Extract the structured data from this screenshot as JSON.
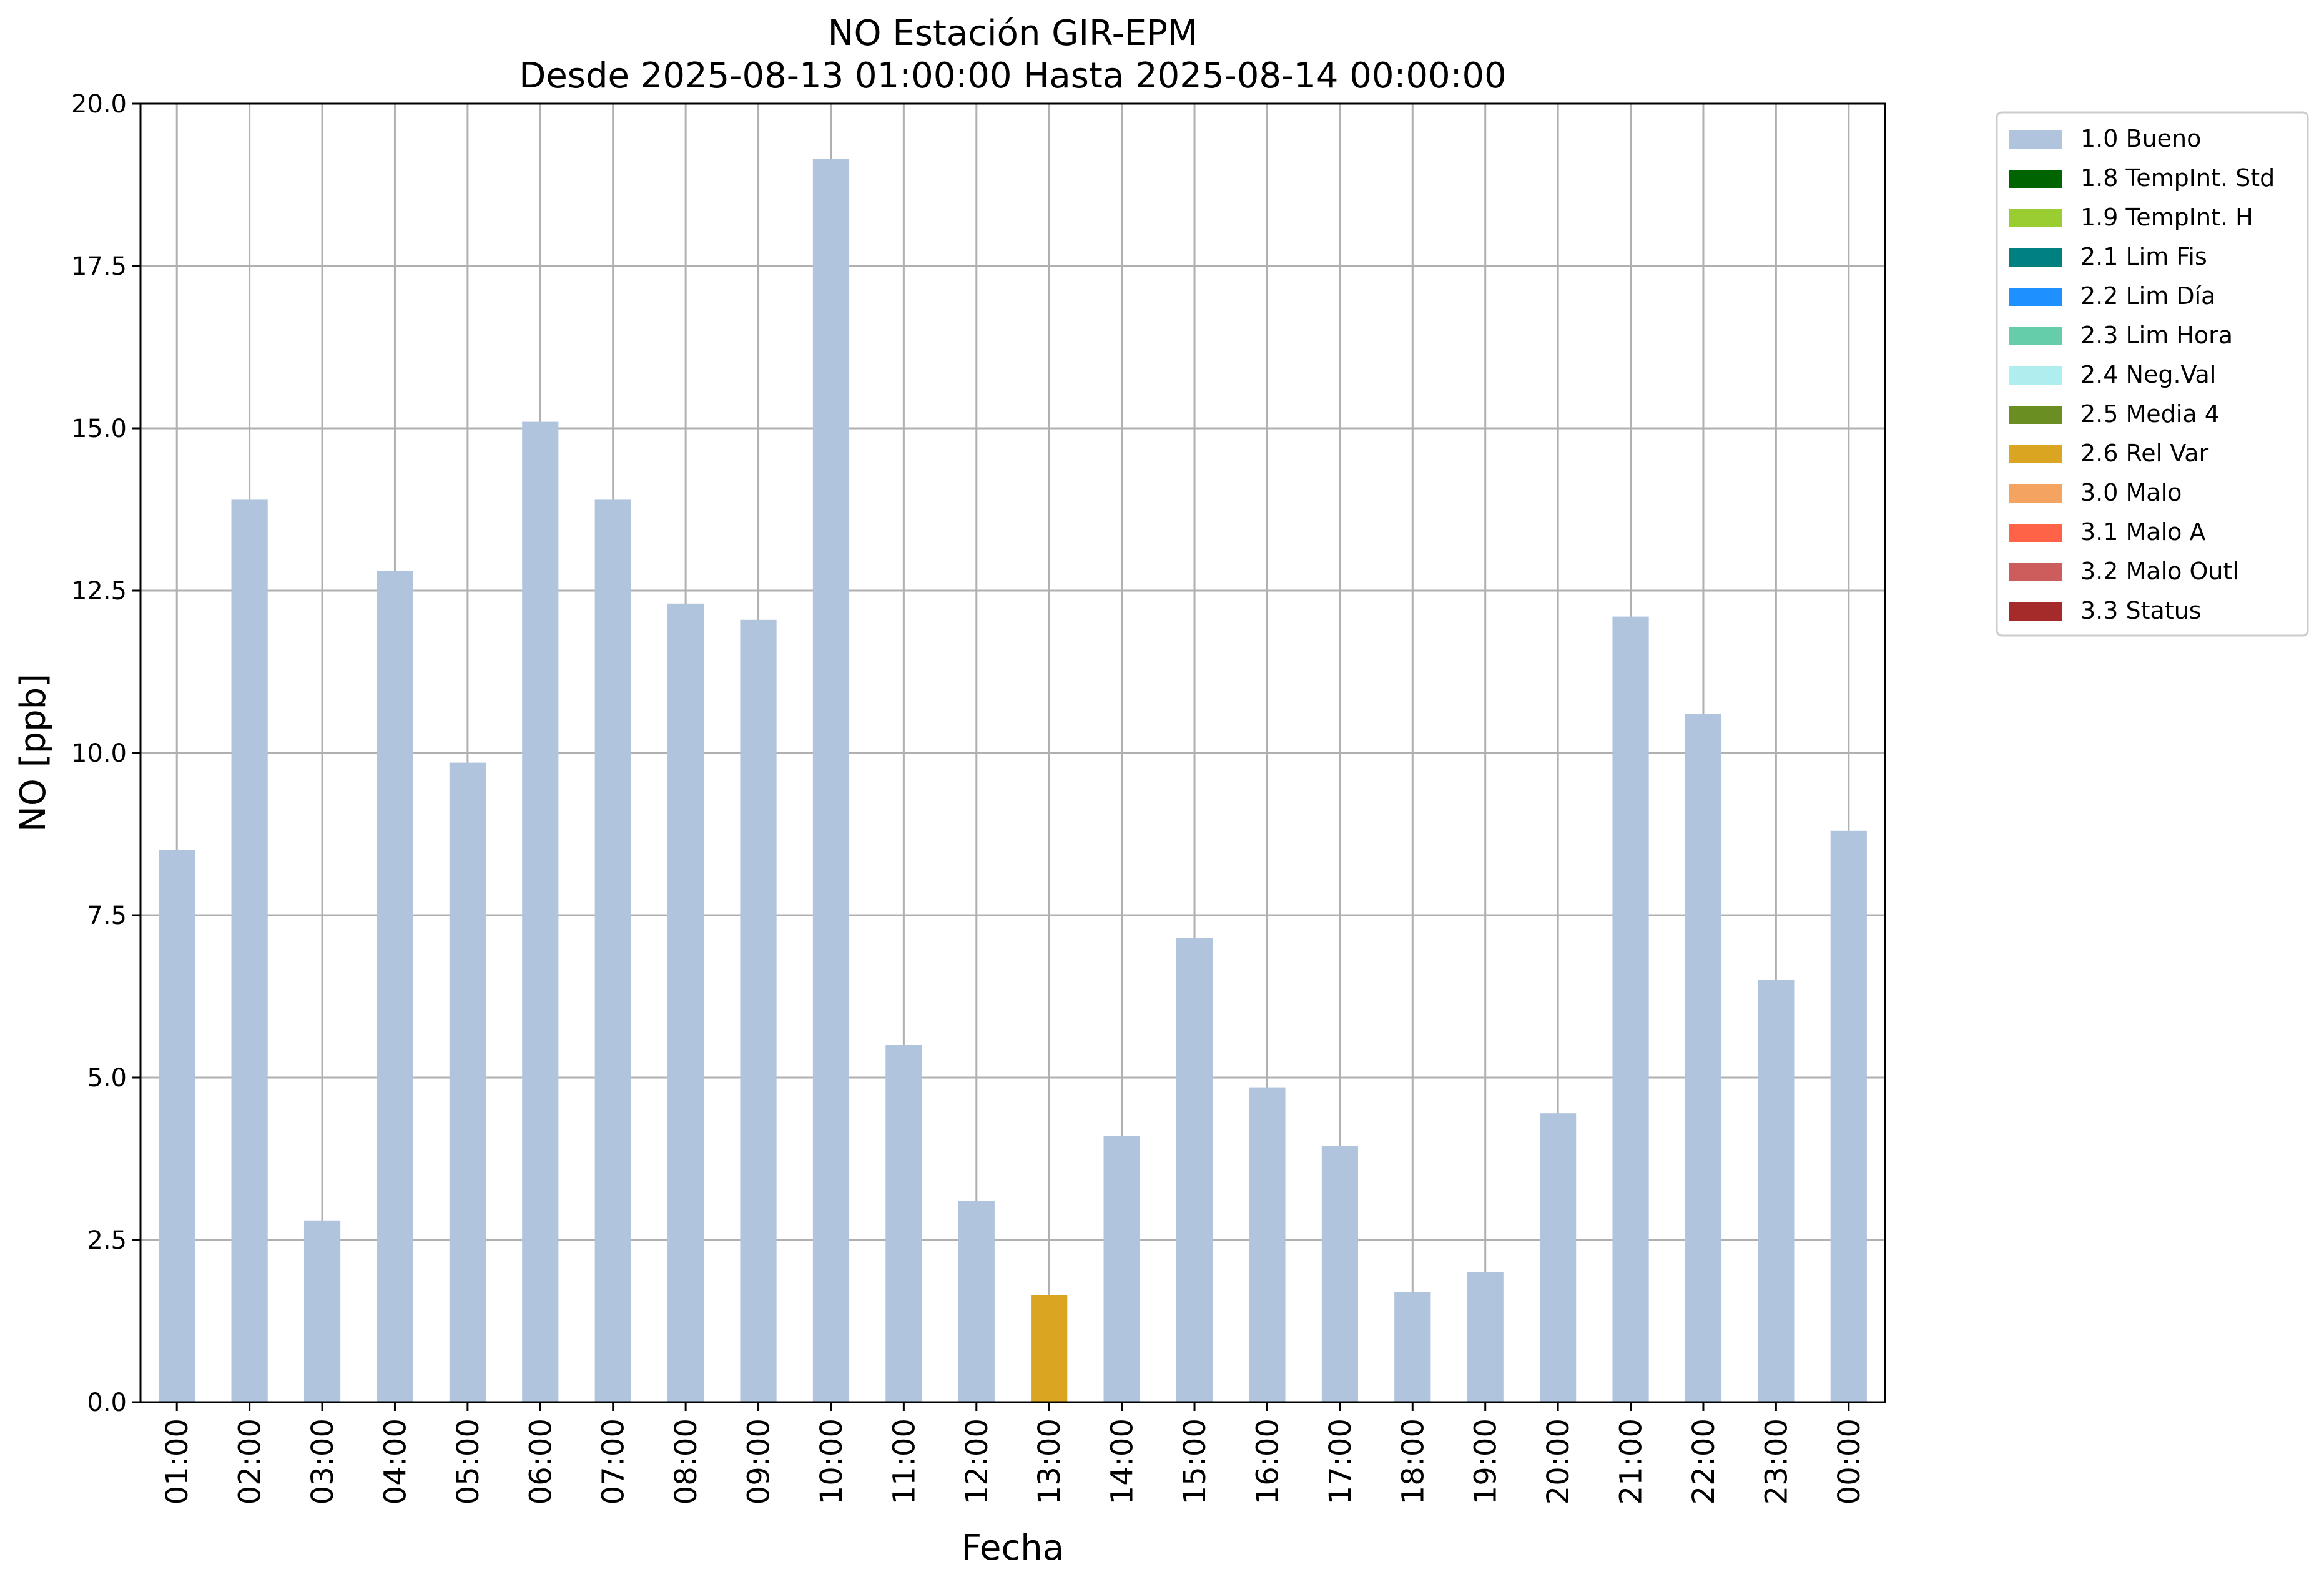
{
  "chart_data": {
    "type": "bar",
    "title": "NO Estación GIR-EPM",
    "subtitle": "Desde 2025-08-13 01:00:00 Hasta 2025-08-14 00:00:00",
    "xlabel": "Fecha",
    "ylabel": "NO [ppb]",
    "ylim": [
      0,
      20
    ],
    "yticks": [
      "0.0",
      "2.5",
      "5.0",
      "7.5",
      "10.0",
      "12.5",
      "15.0",
      "17.5",
      "20.0"
    ],
    "grid": true,
    "legend_position": "outside-top-right",
    "categories": [
      "01:00",
      "02:00",
      "03:00",
      "04:00",
      "05:00",
      "06:00",
      "07:00",
      "08:00",
      "09:00",
      "10:00",
      "11:00",
      "12:00",
      "13:00",
      "14:00",
      "15:00",
      "16:00",
      "17:00",
      "18:00",
      "19:00",
      "20:00",
      "21:00",
      "22:00",
      "23:00",
      "00:00"
    ],
    "values": [
      8.5,
      13.9,
      2.8,
      12.8,
      9.85,
      15.1,
      13.9,
      12.3,
      12.05,
      19.15,
      5.5,
      3.1,
      1.65,
      4.1,
      7.15,
      4.85,
      3.95,
      1.7,
      2.0,
      4.45,
      12.1,
      10.6,
      6.5,
      8.8
    ],
    "bar_flags": [
      "1.0 Bueno",
      "1.0 Bueno",
      "1.0 Bueno",
      "1.0 Bueno",
      "1.0 Bueno",
      "1.0 Bueno",
      "1.0 Bueno",
      "1.0 Bueno",
      "1.0 Bueno",
      "1.0 Bueno",
      "1.0 Bueno",
      "1.0 Bueno",
      "2.6 Rel Var",
      "1.0 Bueno",
      "1.0 Bueno",
      "1.0 Bueno",
      "1.0 Bueno",
      "1.0 Bueno",
      "1.0 Bueno",
      "1.0 Bueno",
      "1.0 Bueno",
      "1.0 Bueno",
      "1.0 Bueno",
      "1.0 Bueno"
    ],
    "legend": [
      {
        "label": "1.0 Bueno",
        "color": "#b0c4de"
      },
      {
        "label": "1.8 TempInt. Std",
        "color": "#006400"
      },
      {
        "label": "1.9 TempInt. H",
        "color": "#9acd32"
      },
      {
        "label": "2.1 Lim Fis",
        "color": "#008080"
      },
      {
        "label": "2.2 Lim Día",
        "color": "#1e90ff"
      },
      {
        "label": "2.3 Lim Hora",
        "color": "#66cdaa"
      },
      {
        "label": "2.4 Neg.Val",
        "color": "#afeeee"
      },
      {
        "label": "2.5 Media 4",
        "color": "#6b8e23"
      },
      {
        "label": "2.6 Rel Var",
        "color": "#daa520"
      },
      {
        "label": "3.0 Malo",
        "color": "#f4a460"
      },
      {
        "label": "3.1 Malo A",
        "color": "#ff6347"
      },
      {
        "label": "3.2 Malo Outl",
        "color": "#cd5c5c"
      },
      {
        "label": "3.3 Status",
        "color": "#a52a2a"
      }
    ]
  }
}
